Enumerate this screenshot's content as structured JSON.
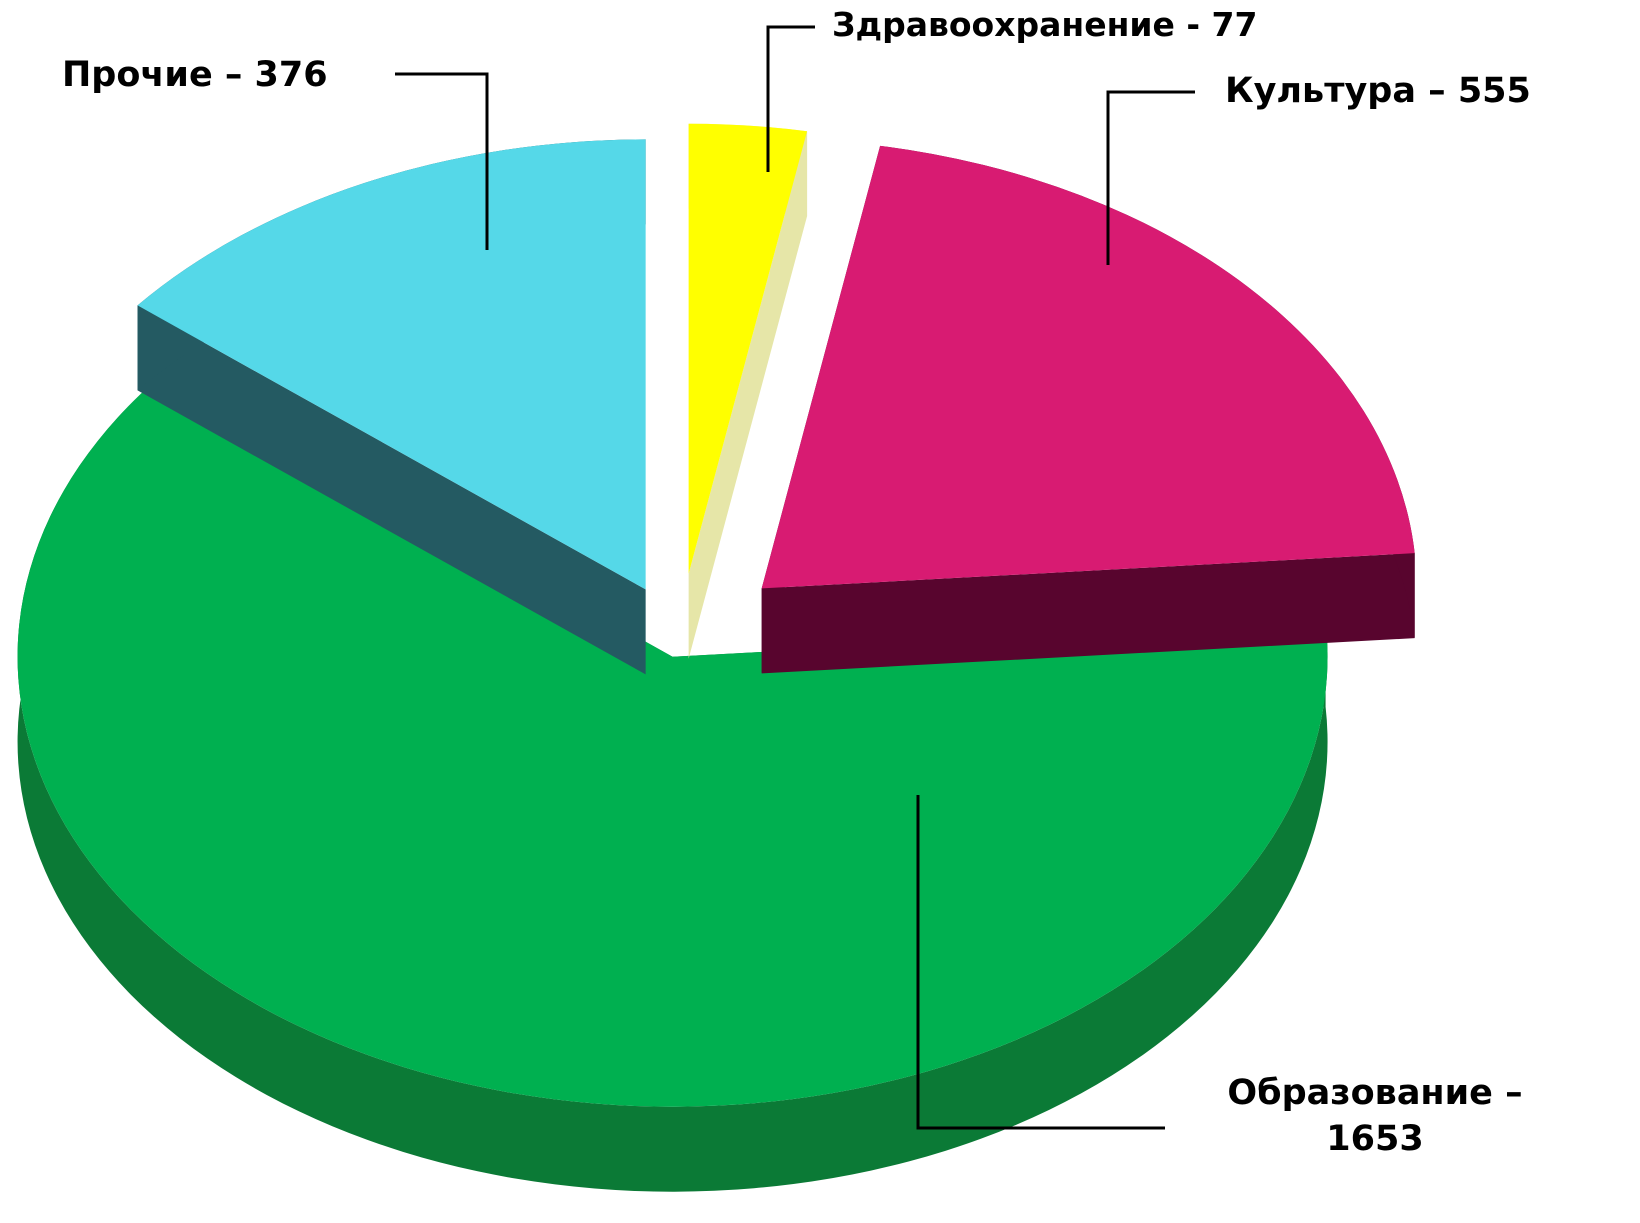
{
  "chart_data": {
    "type": "pie",
    "categories": [
      "Здравоохранение - 77",
      "Культура – 555",
      "Образование – 1653",
      "Прочие – 376"
    ],
    "values": [
      77,
      555,
      1653,
      376
    ],
    "colors": [
      "#ffff00",
      "#d81b72",
      "#00b050",
      "#55d8e8"
    ],
    "side_colors": [
      "#e6e6a8",
      "#58052e",
      "#0b7a36",
      "#245a62"
    ]
  }
}
